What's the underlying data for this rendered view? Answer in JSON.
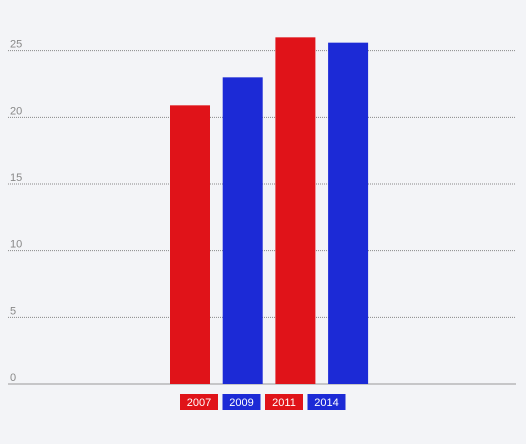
{
  "chart_data": {
    "type": "bar",
    "categories": [
      "2007",
      "2009",
      "2011",
      "2014"
    ],
    "values": [
      20.9,
      23.0,
      26.0,
      25.6
    ],
    "colors": [
      "#e01319",
      "#1c2ad6",
      "#e01319",
      "#1c2ad6"
    ],
    "ylim": [
      0,
      28.8
    ],
    "yticks": [
      0,
      5,
      10,
      15,
      20,
      25
    ],
    "grid": true
  }
}
